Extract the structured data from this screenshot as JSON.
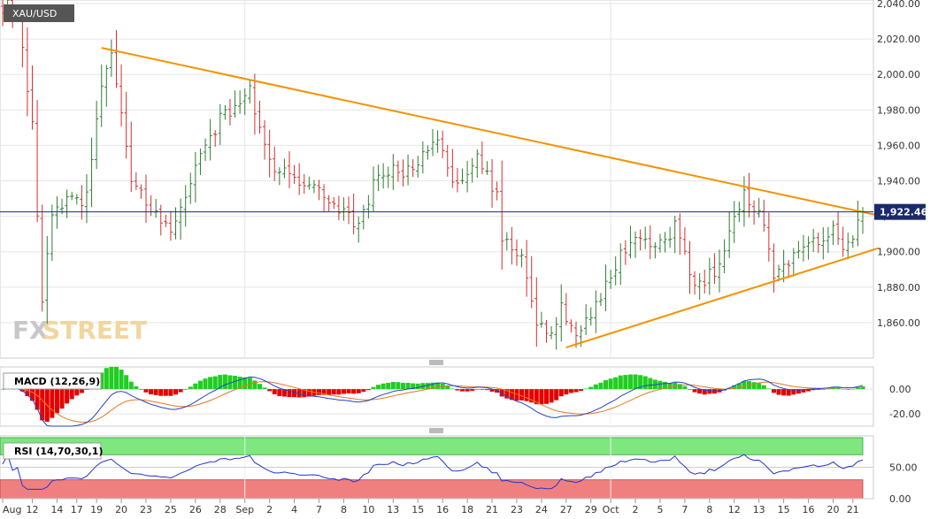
{
  "chart_data": [
    {
      "type": "candlestick",
      "symbol": "XAU/USD",
      "last_price_label": "1,922.46",
      "last_price": 1922.46,
      "ylim": [
        1840,
        2042
      ],
      "y_ticks": [
        1860,
        1880,
        1900,
        1920,
        1940,
        1960,
        1980,
        2000,
        2020,
        2040
      ],
      "y_tick_labels": [
        "1,860.00",
        "1,880.00",
        "1,900.00",
        "1,920.00",
        "1,940.00",
        "1,960.00",
        "1,980.00",
        "2,000.00",
        "2,020.00",
        "2,040.00"
      ],
      "x_tick_labels": [
        "Aug",
        "12",
        "14",
        "17",
        "19",
        "20",
        "23",
        "25",
        "26",
        "28",
        "Sep",
        "2",
        "4",
        "7",
        "8",
        "10",
        "13",
        "15",
        "16",
        "18",
        "21",
        "23",
        "24",
        "27",
        "29",
        "Oct",
        "2",
        "5",
        "7",
        "8",
        "12",
        "13",
        "15",
        "16",
        "20",
        "21"
      ],
      "x_tick_index": [
        0,
        6,
        11,
        15,
        19,
        24,
        29,
        34,
        39,
        44,
        49,
        54,
        59,
        64,
        69,
        74,
        79,
        84,
        89,
        94,
        99,
        104,
        109,
        114,
        119,
        123,
        128,
        133,
        138,
        143,
        148,
        153,
        158,
        163,
        168,
        172
      ],
      "n_bars": 175,
      "anchors": [
        [
          0,
          2032
        ],
        [
          1,
          2038
        ],
        [
          3,
          2033
        ],
        [
          6,
          1975
        ],
        [
          8,
          1870
        ],
        [
          10,
          1920
        ],
        [
          14,
          1930
        ],
        [
          17,
          1930
        ],
        [
          20,
          1995
        ],
        [
          22,
          2010
        ],
        [
          26,
          1940
        ],
        [
          30,
          1925
        ],
        [
          34,
          1910
        ],
        [
          38,
          1942
        ],
        [
          44,
          1975
        ],
        [
          50,
          1990
        ],
        [
          54,
          1950
        ],
        [
          60,
          1938
        ],
        [
          66,
          1930
        ],
        [
          72,
          1915
        ],
        [
          76,
          1945
        ],
        [
          82,
          1945
        ],
        [
          88,
          1965
        ],
        [
          92,
          1935
        ],
        [
          96,
          1952
        ],
        [
          100,
          1932
        ],
        [
          101,
          1905
        ],
        [
          105,
          1898
        ],
        [
          108,
          1862
        ],
        [
          110,
          1852
        ],
        [
          113,
          1868
        ],
        [
          116,
          1855
        ],
        [
          120,
          1870
        ],
        [
          124,
          1892
        ],
        [
          128,
          1912
        ],
        [
          132,
          1902
        ],
        [
          136,
          1914
        ],
        [
          140,
          1880
        ],
        [
          144,
          1890
        ],
        [
          150,
          1932
        ],
        [
          154,
          1918
        ],
        [
          156,
          1885
        ],
        [
          160,
          1900
        ],
        [
          164,
          1906
        ],
        [
          168,
          1912
        ],
        [
          170,
          1900
        ],
        [
          174,
          1922
        ]
      ],
      "trendlines": [
        {
          "name": "descending-resistance",
          "from": [
            20,
            2015
          ],
          "to": [
            175,
            1919
          ]
        },
        {
          "name": "ascending-support",
          "from": [
            114,
            1846
          ],
          "to": [
            175,
            1901
          ]
        }
      ]
    },
    {
      "type": "line",
      "title": "MACD (12,26,9)",
      "ylim": [
        -30,
        18
      ],
      "y_ticks": [
        -20,
        0
      ],
      "y_tick_labels": [
        "-20.00",
        "0.00"
      ],
      "series": [
        {
          "name": "MACD",
          "color": "#2244cc"
        },
        {
          "name": "Signal",
          "color": "#e87722"
        },
        {
          "name": "Histogram",
          "color_pos": "#22cc22",
          "color_neg": "#e60000"
        }
      ]
    },
    {
      "type": "line",
      "title": "RSI (14,70,30,1)",
      "ylim": [
        0,
        100
      ],
      "y_ticks": [
        0,
        50
      ],
      "y_tick_labels": [
        "0.00",
        "50.00"
      ],
      "overbought": 70,
      "oversold": 30,
      "series": [
        {
          "name": "RSI",
          "color": "#2233cc"
        }
      ]
    }
  ],
  "branding": {
    "logo_fx": "FX",
    "logo_street": "STREET"
  },
  "colors": {
    "up": "#2e7d32",
    "down": "#d32f2f",
    "trendline": "#f39200",
    "price_line": "#1a2a6c",
    "overbought_zone": "#7ee87e",
    "oversold_zone": "#f08080",
    "panel_bg": "#ffffff"
  }
}
